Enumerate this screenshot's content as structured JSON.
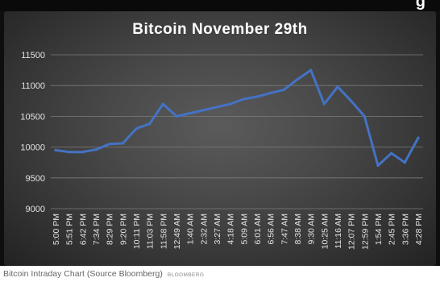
{
  "banner": {
    "text": "g"
  },
  "chart_data": {
    "type": "line",
    "title": "Bitcoin November 29th",
    "xlabel": "",
    "ylabel": "",
    "ylim": [
      9000,
      11500
    ],
    "yticks": [
      9000,
      9500,
      10000,
      10500,
      11000,
      11500
    ],
    "grid": true,
    "legend": "none",
    "line_color": "#4472C4",
    "x_tick_labels": [
      "5:00 PM",
      "5:51 PM",
      "6:42 PM",
      "7:34 PM",
      "8:29 PM",
      "9:20 PM",
      "10:11 PM",
      "11:03 PM",
      "11:58 PM",
      "12:49 AM",
      "1:40 AM",
      "2:32 AM",
      "3:27 AM",
      "4:18 AM",
      "5:09 AM",
      "6:01 AM",
      "6:56 AM",
      "7:47 AM",
      "8:38 AM",
      "9:30 AM",
      "10:25 AM",
      "11:16 AM",
      "12:07 PM",
      "12:59 PM",
      "1:54 PM",
      "2:45 PM",
      "3:36 PM",
      "4:28 PM"
    ],
    "series": [
      {
        "x": [
          "5:00 PM",
          "5:51 PM",
          "6:42 PM",
          "7:34 PM",
          "8:29 PM",
          "9:20 PM",
          "10:11 PM",
          "11:03 PM",
          "11:58 PM",
          "12:49 AM",
          "1:40 AM",
          "2:32 AM",
          "3:27 AM",
          "4:18 AM",
          "5:09 AM",
          "6:01 AM",
          "6:56 AM",
          "7:47 AM",
          "8:38 AM",
          "9:30 AM",
          "10:25 AM",
          "11:16 AM",
          "12:07 PM",
          "12:59 PM",
          "1:54 PM",
          "2:45 PM",
          "3:36 PM",
          "4:28 PM"
        ],
        "values": [
          9950,
          9920,
          9920,
          9960,
          10050,
          10060,
          10300,
          10380,
          10700,
          10500,
          10550,
          10600,
          10650,
          10700,
          10780,
          10820,
          10880,
          10930,
          11100,
          11250,
          10700,
          10980,
          10750,
          10500,
          9700,
          9900,
          9750,
          10150
        ]
      }
    ]
  },
  "caption": {
    "text": "Bitcoin Intraday Chart (Source Bloomberg)",
    "source": "BLOOMBERG"
  }
}
